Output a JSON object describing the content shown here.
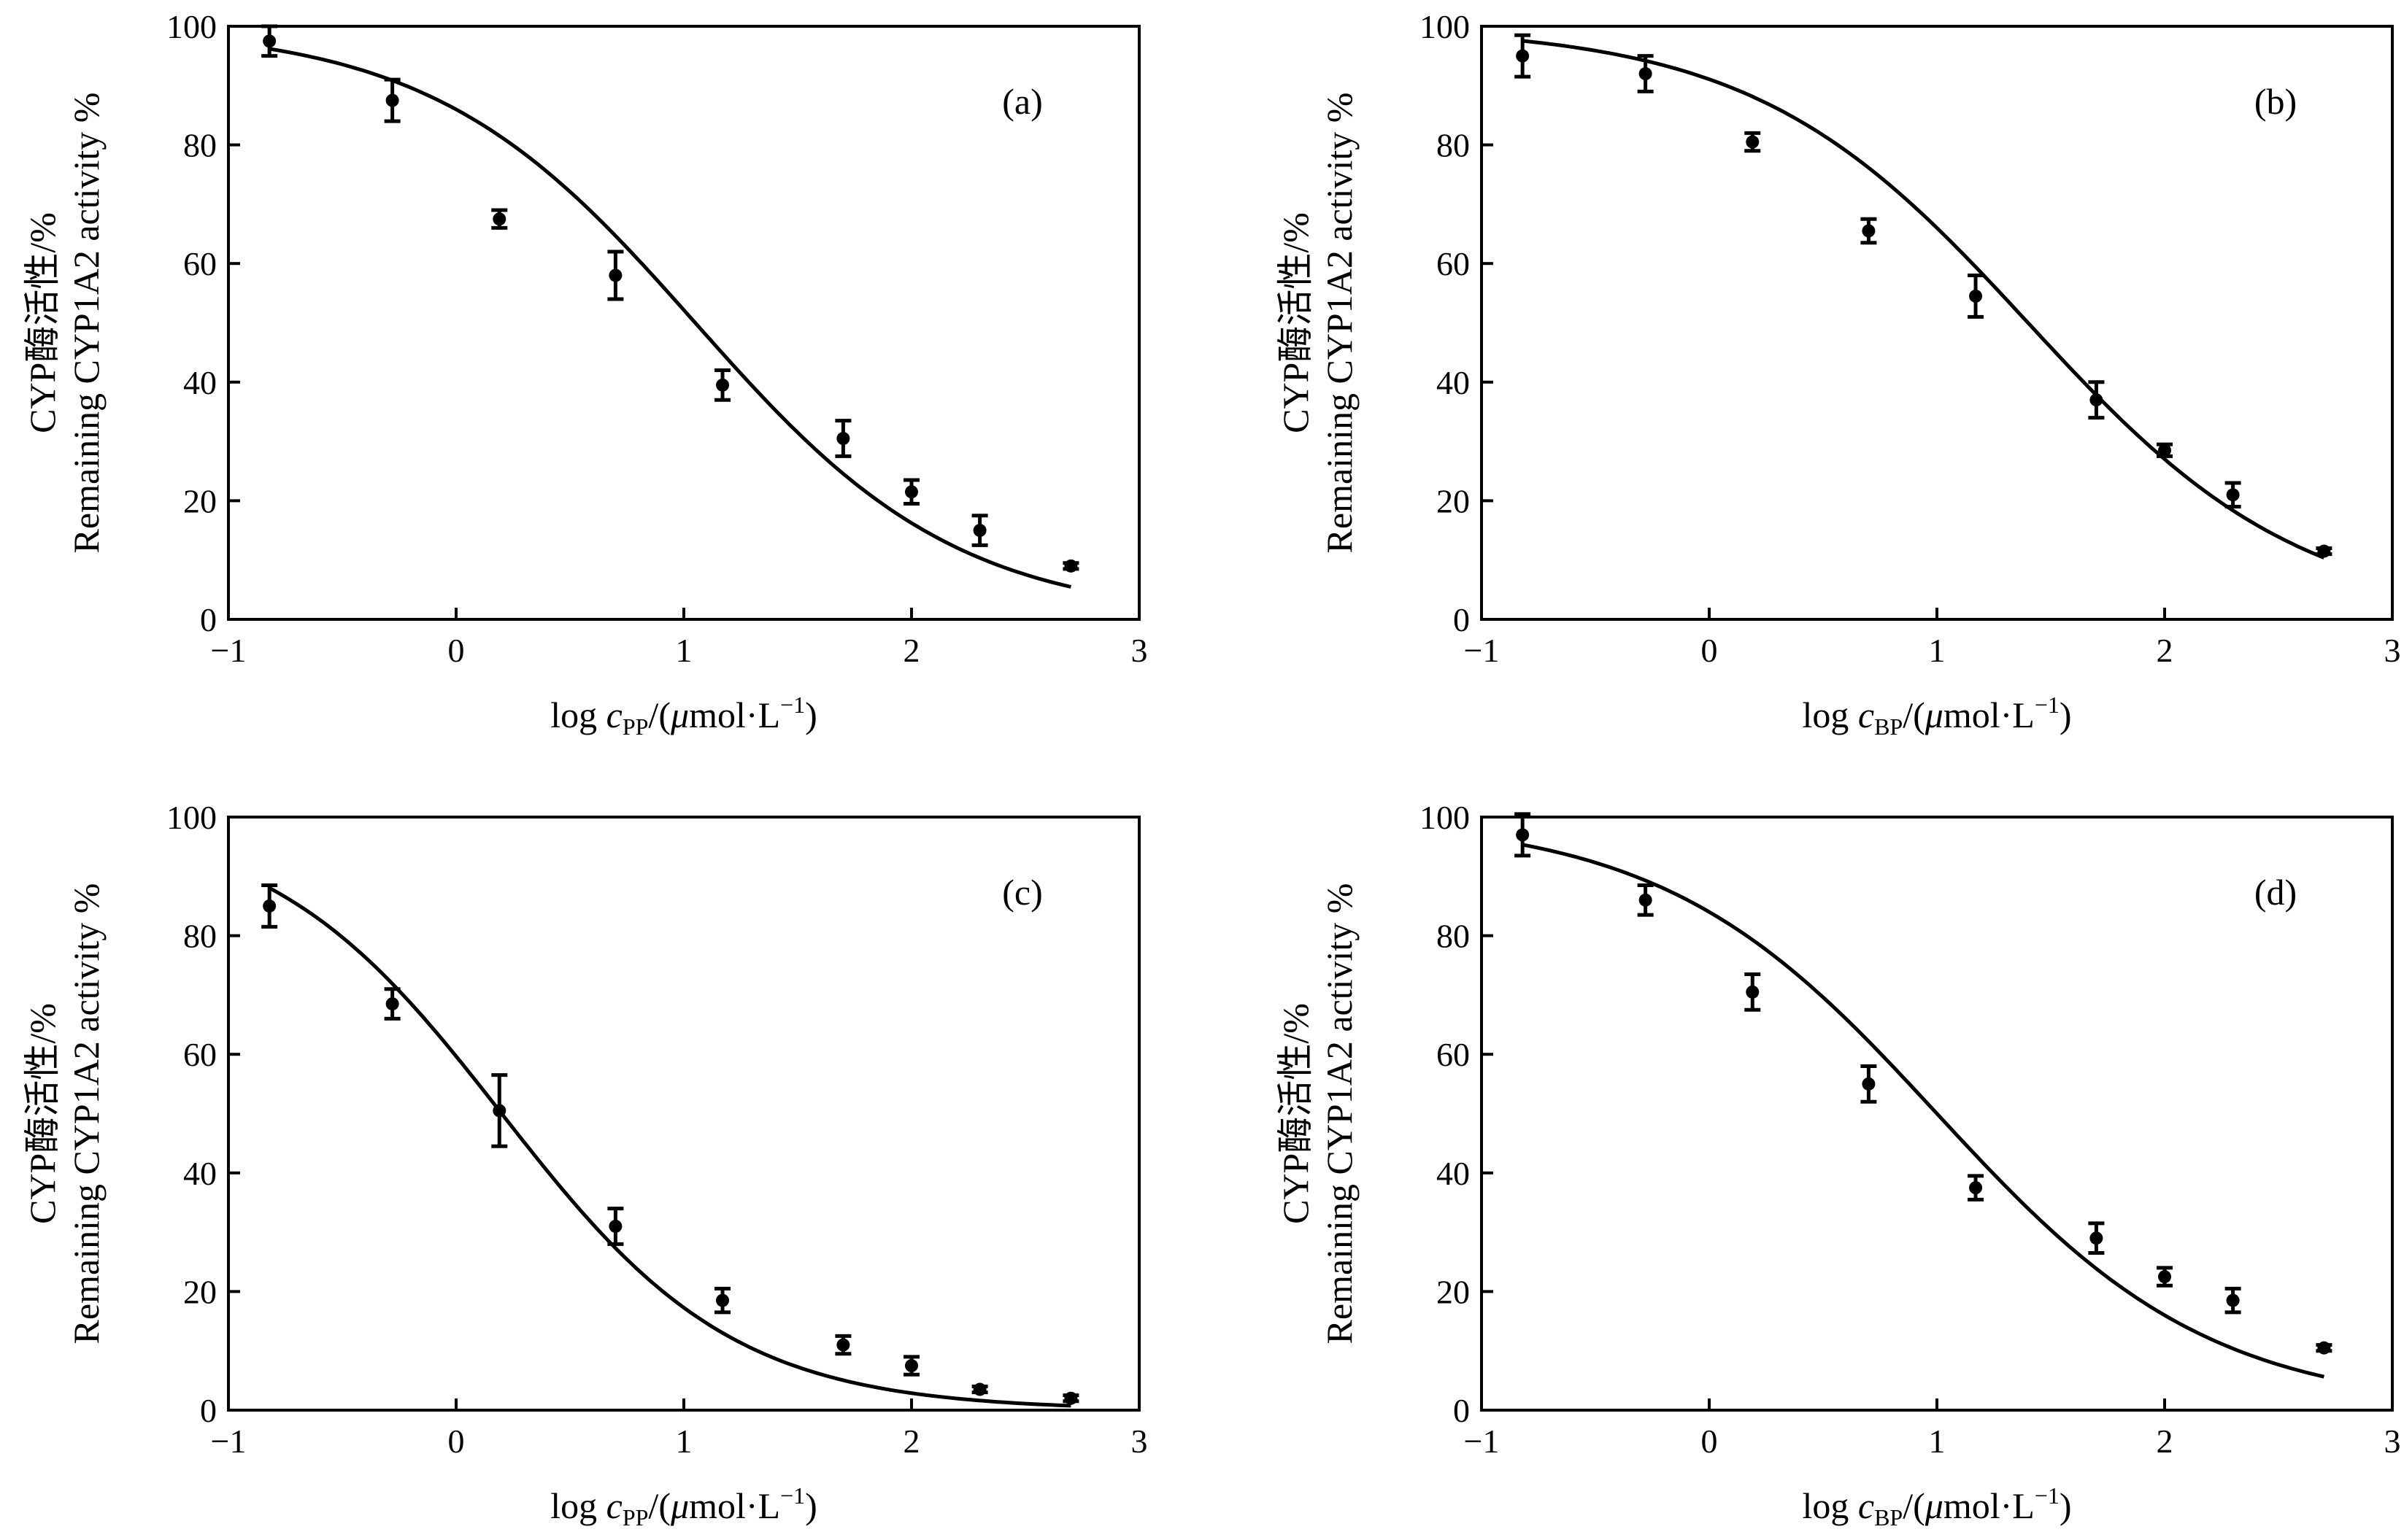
{
  "y_axis_label_line1": "CYP酶活性/%",
  "y_axis_label_line2": "Remaining CYP1A2 activity %",
  "chart_data": [
    {
      "type": "scatter",
      "panel": "(a)",
      "xlabel_prefix": "log ",
      "xlabel_var": "c",
      "xlabel_sub": "PP",
      "xlabel_suffix_unit": "/(",
      "xlabel_mu": "μ",
      "xlabel_unit": "mol·L",
      "xlabel_sup": "−1",
      "xlabel_close": ")",
      "xlim": [
        -1,
        3
      ],
      "ylim": [
        0,
        100
      ],
      "xticks": [
        "−1",
        "0",
        "1",
        "2",
        "3"
      ],
      "xtick_values": [
        -1,
        0,
        1,
        2,
        3
      ],
      "yticks": [
        "0",
        "20",
        "40",
        "60",
        "80",
        "100"
      ],
      "ytick_values": [
        0,
        20,
        40,
        60,
        80,
        100
      ],
      "points": [
        {
          "x": -0.82,
          "y": 97.5,
          "err": 2.5
        },
        {
          "x": -0.28,
          "y": 87.5,
          "err": 3.5
        },
        {
          "x": 0.19,
          "y": 67.5,
          "err": 1.5
        },
        {
          "x": 0.7,
          "y": 58.0,
          "err": 4.0
        },
        {
          "x": 1.17,
          "y": 39.5,
          "err": 2.5
        },
        {
          "x": 1.7,
          "y": 30.5,
          "err": 3.0
        },
        {
          "x": 2.0,
          "y": 21.5,
          "err": 2.0
        },
        {
          "x": 2.3,
          "y": 15.0,
          "err": 2.5
        },
        {
          "x": 2.7,
          "y": 9.0,
          "err": 0.5
        }
      ],
      "fit": {
        "top": 100,
        "bottom": 0,
        "logIC50": 1.05,
        "hill": 0.75,
        "x_range": [
          -0.82,
          2.7
        ]
      }
    },
    {
      "type": "scatter",
      "panel": "(b)",
      "xlabel_prefix": "log ",
      "xlabel_var": "c",
      "xlabel_sub": "BP",
      "xlabel_suffix_unit": "/(",
      "xlabel_mu": "μ",
      "xlabel_unit": "mol·L",
      "xlabel_sup": "−1",
      "xlabel_close": ")",
      "xlim": [
        -1,
        3
      ],
      "ylim": [
        0,
        100
      ],
      "xticks": [
        "−1",
        "0",
        "1",
        "2",
        "3"
      ],
      "xtick_values": [
        -1,
        0,
        1,
        2,
        3
      ],
      "yticks": [
        "0",
        "20",
        "40",
        "60",
        "80",
        "100"
      ],
      "ytick_values": [
        0,
        20,
        40,
        60,
        80,
        100
      ],
      "points": [
        {
          "x": -0.82,
          "y": 95.0,
          "err": 3.5
        },
        {
          "x": -0.28,
          "y": 92.0,
          "err": 3.0
        },
        {
          "x": 0.19,
          "y": 80.5,
          "err": 1.5
        },
        {
          "x": 0.7,
          "y": 65.5,
          "err": 2.0
        },
        {
          "x": 1.17,
          "y": 54.5,
          "err": 3.5
        },
        {
          "x": 1.7,
          "y": 37.0,
          "err": 3.0
        },
        {
          "x": 2.0,
          "y": 28.5,
          "err": 1.0
        },
        {
          "x": 2.3,
          "y": 21.0,
          "err": 2.0
        },
        {
          "x": 2.7,
          "y": 11.5,
          "err": 0.5
        }
      ],
      "fit": {
        "top": 100,
        "bottom": 0,
        "logIC50": 1.4,
        "hill": 0.72,
        "x_range": [
          -0.82,
          2.7
        ]
      }
    },
    {
      "type": "scatter",
      "panel": "(c)",
      "xlabel_prefix": "log ",
      "xlabel_var": "c",
      "xlabel_sub": "PP",
      "xlabel_suffix_unit": "/(",
      "xlabel_mu": "μ",
      "xlabel_unit": "mol·L",
      "xlabel_sup": "−1",
      "xlabel_close": ")",
      "xlim": [
        -1,
        3
      ],
      "ylim": [
        0,
        100
      ],
      "xticks": [
        "−1",
        "0",
        "1",
        "2",
        "3"
      ],
      "xtick_values": [
        -1,
        0,
        1,
        2,
        3
      ],
      "yticks": [
        "0",
        "20",
        "40",
        "60",
        "80",
        "100"
      ],
      "ytick_values": [
        0,
        20,
        40,
        60,
        80,
        100
      ],
      "points": [
        {
          "x": -0.82,
          "y": 85.0,
          "err": 3.5
        },
        {
          "x": -0.28,
          "y": 68.5,
          "err": 2.5
        },
        {
          "x": 0.19,
          "y": 50.5,
          "err": 6.0
        },
        {
          "x": 0.7,
          "y": 31.0,
          "err": 3.0
        },
        {
          "x": 1.17,
          "y": 18.5,
          "err": 2.0
        },
        {
          "x": 1.7,
          "y": 11.0,
          "err": 1.5
        },
        {
          "x": 2.0,
          "y": 7.5,
          "err": 1.5
        },
        {
          "x": 2.3,
          "y": 3.5,
          "err": 0.5
        },
        {
          "x": 2.7,
          "y": 2.0,
          "err": 0.5
        }
      ],
      "fit": {
        "top": 100,
        "bottom": 0,
        "logIC50": 0.2,
        "hill": 0.85,
        "x_range": [
          -0.82,
          2.7
        ]
      }
    },
    {
      "type": "scatter",
      "panel": "(d)",
      "xlabel_prefix": "log ",
      "xlabel_var": "c",
      "xlabel_sub": "BP",
      "xlabel_suffix_unit": "/(",
      "xlabel_mu": "μ",
      "xlabel_unit": "mol·L",
      "xlabel_sup": "−1",
      "xlabel_close": ")",
      "xlim": [
        -1,
        3
      ],
      "ylim": [
        0,
        100
      ],
      "xticks": [
        "−1",
        "0",
        "1",
        "2",
        "3"
      ],
      "xtick_values": [
        -1,
        0,
        1,
        2,
        3
      ],
      "yticks": [
        "0",
        "20",
        "40",
        "60",
        "80",
        "100"
      ],
      "ytick_values": [
        0,
        20,
        40,
        60,
        80,
        100
      ],
      "points": [
        {
          "x": -0.82,
          "y": 97.0,
          "err": 3.5
        },
        {
          "x": -0.28,
          "y": 86.0,
          "err": 2.5
        },
        {
          "x": 0.19,
          "y": 70.5,
          "err": 3.0
        },
        {
          "x": 0.7,
          "y": 55.0,
          "err": 3.0
        },
        {
          "x": 1.17,
          "y": 37.5,
          "err": 2.0
        },
        {
          "x": 1.7,
          "y": 29.0,
          "err": 2.5
        },
        {
          "x": 2.0,
          "y": 22.5,
          "err": 1.5
        },
        {
          "x": 2.3,
          "y": 18.5,
          "err": 2.0
        },
        {
          "x": 2.7,
          "y": 10.5,
          "err": 0.5
        }
      ],
      "fit": {
        "top": 100,
        "bottom": 0,
        "logIC50": 1.0,
        "hill": 0.72,
        "x_range": [
          -0.82,
          2.7
        ]
      }
    }
  ]
}
